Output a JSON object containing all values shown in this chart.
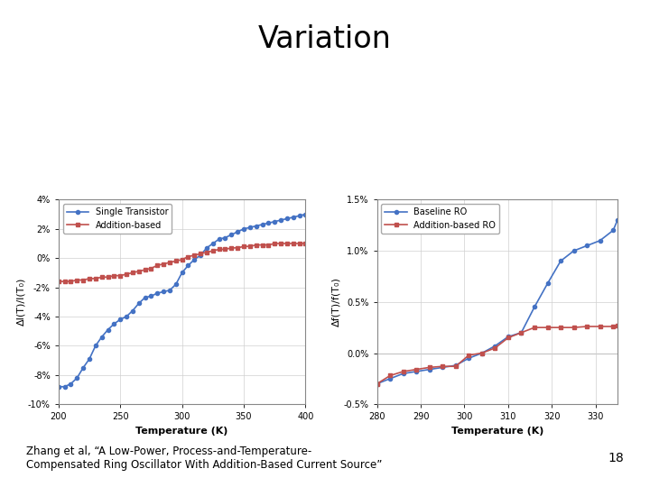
{
  "title": "Variation",
  "title_fontsize": 24,
  "title_fontweight": "normal",
  "bg_color": "#ffffff",
  "footnote_line1": "Zhang et al, “A Low-Power, Process-and-Temperature-",
  "footnote_line2": "Compensated Ring Oscillator With Addition-Based Current Source”",
  "footnote_fontsize": 8.5,
  "page_number": "18",
  "plot1": {
    "xlabel": "Temperature (K)",
    "ylabel": "ΔI(T)/I(T₀)",
    "xlim": [
      200,
      400
    ],
    "xticks": [
      200,
      250,
      300,
      350,
      400
    ],
    "ylim": [
      -0.1,
      0.04
    ],
    "yticks": [
      -0.1,
      -0.08,
      -0.06,
      -0.04,
      -0.02,
      0.0,
      0.02,
      0.04
    ],
    "ytick_labels": [
      "-10%",
      "-8%",
      "-6%",
      "-4%",
      "-2%",
      "0%",
      "2%",
      "4%"
    ],
    "legend1": "Single Transistor",
    "legend2": "Addition-based",
    "color_blue": "#4472C4",
    "color_red": "#C0504D",
    "x_single": [
      200,
      205,
      210,
      215,
      220,
      225,
      230,
      235,
      240,
      245,
      250,
      255,
      260,
      265,
      270,
      275,
      280,
      285,
      290,
      295,
      300,
      305,
      310,
      315,
      320,
      325,
      330,
      335,
      340,
      345,
      350,
      355,
      360,
      365,
      370,
      375,
      380,
      385,
      390,
      395,
      400
    ],
    "y_single": [
      -0.088,
      -0.088,
      -0.086,
      -0.082,
      -0.075,
      -0.069,
      -0.06,
      -0.054,
      -0.049,
      -0.045,
      -0.042,
      -0.04,
      -0.036,
      -0.031,
      -0.027,
      -0.026,
      -0.024,
      -0.023,
      -0.022,
      -0.018,
      -0.01,
      -0.005,
      -0.001,
      0.002,
      0.007,
      0.01,
      0.013,
      0.014,
      0.016,
      0.018,
      0.02,
      0.021,
      0.022,
      0.023,
      0.024,
      0.025,
      0.026,
      0.027,
      0.028,
      0.029,
      0.03
    ],
    "x_addition": [
      200,
      205,
      210,
      215,
      220,
      225,
      230,
      235,
      240,
      245,
      250,
      255,
      260,
      265,
      270,
      275,
      280,
      285,
      290,
      295,
      300,
      305,
      310,
      315,
      320,
      325,
      330,
      335,
      340,
      345,
      350,
      355,
      360,
      365,
      370,
      375,
      380,
      385,
      390,
      395,
      400
    ],
    "y_addition": [
      -0.016,
      -0.016,
      -0.016,
      -0.015,
      -0.015,
      -0.014,
      -0.014,
      -0.013,
      -0.013,
      -0.012,
      -0.012,
      -0.011,
      -0.01,
      -0.009,
      -0.008,
      -0.007,
      -0.005,
      -0.004,
      -0.003,
      -0.002,
      -0.001,
      0.001,
      0.002,
      0.003,
      0.004,
      0.005,
      0.006,
      0.006,
      0.007,
      0.007,
      0.008,
      0.008,
      0.009,
      0.009,
      0.009,
      0.01,
      0.01,
      0.01,
      0.01,
      0.01,
      0.01
    ]
  },
  "plot2": {
    "xlabel": "Temperature (K)",
    "ylabel": "Δf(T)/f(T₀)",
    "xlim": [
      280,
      335
    ],
    "xticks": [
      280,
      290,
      300,
      310,
      320,
      330
    ],
    "ylim": [
      -0.005,
      0.015
    ],
    "yticks": [
      -0.005,
      0.0,
      0.005,
      0.01,
      0.015
    ],
    "ytick_labels": [
      "-0.5%",
      "0.0%",
      "0.5%",
      "1.0%",
      "1.5%"
    ],
    "legend1": "Baseline RO",
    "legend2": "Addition-based RO",
    "color_blue": "#4472C4",
    "color_red": "#C0504D",
    "x_baseline": [
      280,
      283,
      286,
      289,
      292,
      295,
      298,
      301,
      304,
      307,
      310,
      313,
      316,
      319,
      322,
      325,
      328,
      331,
      334
    ],
    "y_baseline": [
      -0.003,
      -0.0025,
      -0.002,
      -0.0018,
      -0.0016,
      -0.0014,
      -0.0012,
      -0.0005,
      0.0,
      0.0007,
      0.0016,
      0.002,
      0.0045,
      0.0068,
      0.009,
      0.01,
      0.0105,
      0.011,
      0.012
    ],
    "x_addition2": [
      280,
      283,
      286,
      289,
      292,
      295,
      298,
      301,
      304,
      307,
      310,
      313,
      316,
      319,
      322,
      325,
      328,
      331,
      334
    ],
    "y_addition2": [
      -0.003,
      -0.0022,
      -0.0018,
      -0.0016,
      -0.0014,
      -0.0013,
      -0.0013,
      -0.0002,
      0.0,
      0.0005,
      0.0015,
      0.002,
      0.0025,
      0.0025,
      0.0025,
      0.0025,
      0.0026,
      0.0026,
      0.0026
    ]
  }
}
